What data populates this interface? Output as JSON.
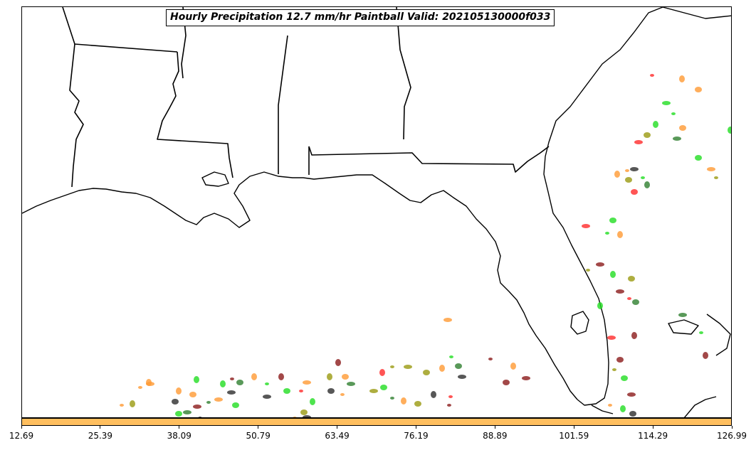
{
  "title": "Hourly Precipitation 12.7 mm/hr Paintball Valid: 202105130000f033",
  "colorbar": {
    "color": "#FFBF5F",
    "ticks": [
      "12.69",
      "25.39",
      "38.09",
      "50.79",
      "63.49",
      "76.19",
      "88.89",
      "101.59",
      "114.29",
      "126.99"
    ]
  },
  "map": {
    "region": "US Gulf Coast / Florida",
    "boundaries": [
      "coastline",
      "state-borders"
    ],
    "member_colors": [
      "#ff2a2a",
      "#22dd22",
      "#ff9a33",
      "#2d2d2d",
      "#8b1a1a",
      "#9a9a10",
      "#2f7f2f"
    ]
  }
}
